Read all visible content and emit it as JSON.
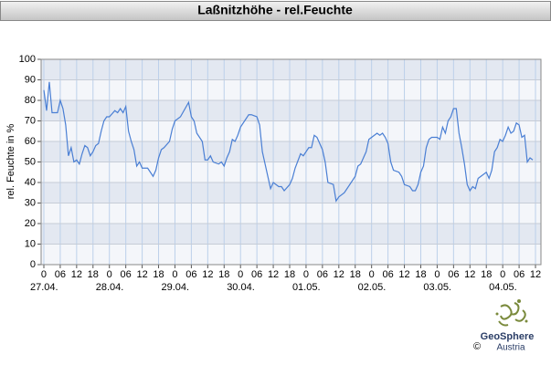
{
  "chart_data": {
    "type": "line",
    "title": "Laßnitzhöhe - rel.Feuchte",
    "ylabel": "rel. Feuchte in %",
    "color": "#4a7fd4",
    "grid": true,
    "ylim": [
      0,
      100
    ],
    "yticks": [
      0,
      10,
      20,
      30,
      40,
      50,
      60,
      70,
      80,
      90,
      100
    ],
    "xlim": [
      -1,
      182
    ],
    "xticks": [
      {
        "value": 0,
        "label": "0"
      },
      {
        "value": 6,
        "label": "06"
      },
      {
        "value": 12,
        "label": "12"
      },
      {
        "value": 18,
        "label": "18"
      },
      {
        "value": 24,
        "label": "0"
      },
      {
        "value": 30,
        "label": "06"
      },
      {
        "value": 36,
        "label": "12"
      },
      {
        "value": 42,
        "label": "18"
      },
      {
        "value": 48,
        "label": "0"
      },
      {
        "value": 54,
        "label": "06"
      },
      {
        "value": 60,
        "label": "12"
      },
      {
        "value": 66,
        "label": "18"
      },
      {
        "value": 72,
        "label": "0"
      },
      {
        "value": 78,
        "label": "06"
      },
      {
        "value": 84,
        "label": "12"
      },
      {
        "value": 90,
        "label": "18"
      },
      {
        "value": 96,
        "label": "0"
      },
      {
        "value": 102,
        "label": "06"
      },
      {
        "value": 108,
        "label": "12"
      },
      {
        "value": 114,
        "label": "18"
      },
      {
        "value": 120,
        "label": "0"
      },
      {
        "value": 126,
        "label": "06"
      },
      {
        "value": 132,
        "label": "12"
      },
      {
        "value": 138,
        "label": "18"
      },
      {
        "value": 144,
        "label": "0"
      },
      {
        "value": 150,
        "label": "06"
      },
      {
        "value": 156,
        "label": "12"
      },
      {
        "value": 162,
        "label": "18"
      },
      {
        "value": 168,
        "label": "0"
      },
      {
        "value": 174,
        "label": "06"
      },
      {
        "value": 180,
        "label": "12"
      }
    ],
    "date_labels": [
      {
        "value": 0,
        "label": "27.04."
      },
      {
        "value": 24,
        "label": "28.04."
      },
      {
        "value": 48,
        "label": "29.04."
      },
      {
        "value": 72,
        "label": "30.04."
      },
      {
        "value": 96,
        "label": "01.05."
      },
      {
        "value": 120,
        "label": "02.05."
      },
      {
        "value": 144,
        "label": "03.05."
      },
      {
        "value": 168,
        "label": "04.05."
      }
    ],
    "x": [
      0,
      1,
      2,
      3,
      5,
      6,
      7,
      8,
      9,
      10,
      11,
      12,
      13,
      14,
      15,
      16,
      17,
      18,
      19,
      20,
      21,
      22,
      23,
      24,
      26,
      27,
      28,
      29,
      30,
      31,
      32,
      33,
      34,
      35,
      36,
      38,
      40,
      41,
      42,
      43,
      44,
      46,
      47,
      48,
      50,
      53,
      54,
      55,
      56,
      58,
      59,
      60,
      61,
      62,
      64,
      65,
      66,
      67,
      68,
      69,
      70,
      71,
      72,
      74,
      75,
      76,
      78,
      79,
      80,
      81,
      82,
      83,
      84,
      86,
      87,
      88,
      90,
      91,
      92,
      94,
      95,
      97,
      98,
      99,
      100,
      102,
      103,
      104,
      106,
      107,
      108,
      110,
      111,
      112,
      114,
      115,
      116,
      118,
      119,
      120,
      122,
      123,
      124,
      125,
      126,
      127,
      128,
      130,
      131,
      132,
      134,
      135,
      136,
      137,
      138,
      139,
      140,
      141,
      142,
      144,
      145,
      146,
      147,
      148,
      149,
      150,
      151,
      152,
      153,
      154,
      155,
      156,
      157,
      158,
      159,
      160,
      162,
      163,
      164,
      165,
      166,
      167,
      168,
      169,
      170,
      171,
      172,
      173,
      174,
      175,
      176,
      177,
      178,
      179
    ],
    "values": [
      85,
      75,
      89,
      74,
      74,
      80,
      76,
      68,
      53,
      57,
      50,
      51,
      49,
      54,
      58,
      57,
      53,
      55,
      58,
      59,
      65,
      70,
      72,
      72,
      75,
      74,
      76,
      74,
      77,
      65,
      60,
      56,
      48,
      50,
      47,
      47,
      43,
      46,
      52,
      56,
      57,
      60,
      66,
      70,
      72,
      79,
      72,
      70,
      64,
      60,
      51,
      51,
      53,
      50,
      49,
      50,
      48,
      52,
      55,
      61,
      60,
      63,
      67,
      71,
      73,
      73,
      72,
      68,
      55,
      49,
      43,
      37,
      40,
      38,
      38,
      36,
      39,
      42,
      47,
      54,
      53,
      57,
      57,
      63,
      62,
      56,
      50,
      40,
      39,
      31,
      33,
      35,
      37,
      39,
      43,
      48,
      49,
      55,
      61,
      62,
      64,
      63,
      64,
      62,
      59,
      50,
      46,
      45,
      43,
      39,
      38,
      36,
      36,
      39,
      45,
      48,
      57,
      61,
      62,
      62,
      61,
      67,
      64,
      70,
      72,
      76,
      76,
      64,
      57,
      49,
      39,
      36,
      38,
      37,
      42,
      43,
      45,
      42,
      46,
      55,
      57,
      61,
      60,
      63,
      67,
      64,
      65,
      69,
      68,
      62,
      63,
      50,
      52,
      51
    ]
  },
  "logo": {
    "name": "GeoSphere",
    "subname": "Austria",
    "copyright": "©"
  }
}
